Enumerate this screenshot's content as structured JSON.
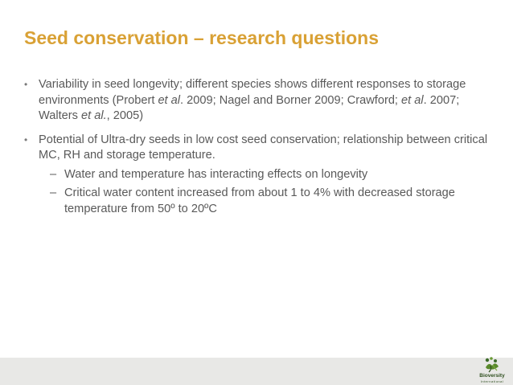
{
  "slide": {
    "title": "Seed conservation – research questions",
    "bullets": [
      {
        "parts": [
          "Variability in seed longevity; different species shows different responses to storage environments (Probert ",
          "et al",
          ". 2009; Nagel and Borner 2009; Crawford; ",
          "et al",
          ". 2007; Walters ",
          "et al.",
          ", 2005)"
        ]
      },
      {
        "text": "Potential of Ultra-dry seeds in low cost seed conservation; relationship between critical MC, RH and storage temperature.",
        "subs": [
          "Water and temperature has interacting effects on longevity",
          "Critical water content increased from about 1 to 4% with decreased storage temperature from 50º to 20ºC"
        ]
      }
    ],
    "bullet_symbol": "•",
    "sub_symbol": "–"
  },
  "footer": {
    "logo_name": "Bioversity",
    "logo_sub": "International",
    "logo_icon": "bioversity-leaf-logo"
  }
}
